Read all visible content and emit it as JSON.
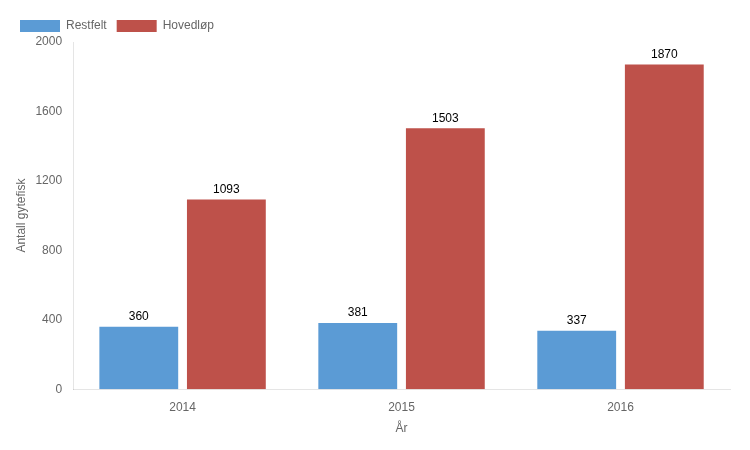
{
  "chart_data": {
    "type": "bar",
    "categories": [
      "2014",
      "2015",
      "2016"
    ],
    "series": [
      {
        "name": "Restfelt",
        "color": "#5B9BD5",
        "values": [
          360,
          381,
          337
        ]
      },
      {
        "name": "Hovedløp",
        "color": "#BE514A",
        "values": [
          1093,
          1503,
          1870
        ]
      }
    ],
    "xlabel": "År",
    "ylabel": "Antall gytefisk",
    "ylim": [
      0,
      2000
    ],
    "yticks": [
      0,
      400,
      800,
      1200,
      1600,
      2000
    ],
    "grid": false,
    "legend": "upper left",
    "data_labels": true
  }
}
